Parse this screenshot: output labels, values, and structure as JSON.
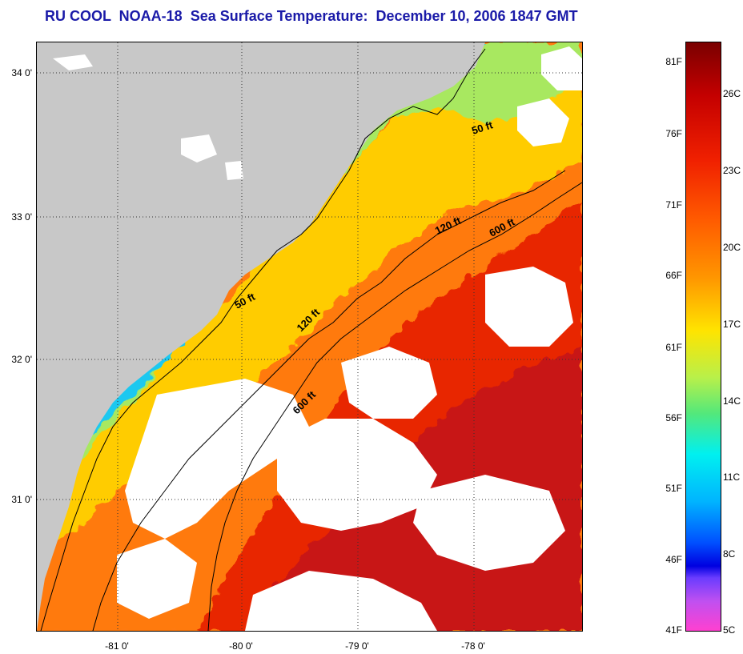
{
  "title": "RU COOL  NOAA-18  Sea Surface Temperature:  December 10, 2006 1847 GMT",
  "map": {
    "lat_labels": [
      "34 0'",
      "33 0'",
      "32 0'",
      "31 0'"
    ],
    "lon_labels": [
      "-81 0'",
      "-80 0'",
      "-79 0'",
      "-78 0'"
    ],
    "contour_labels": [
      "50 ft",
      "120 ft",
      "600 ft",
      "50 ft",
      "120 ft",
      "600 ft"
    ],
    "colors": {
      "land": "#c8c8c8",
      "cloud": "#ffffff",
      "near_shore": "#1ec8f0",
      "shelf": "#a8e860",
      "mid_shelf": "#ffcc00",
      "outer_shelf": "#ff7a10",
      "gulf_stream": "#e82800",
      "gulf_core": "#c81414"
    }
  },
  "colorbar": {
    "fahrenheit": [
      "81F",
      "76F",
      "71F",
      "66F",
      "61F",
      "56F",
      "51F",
      "46F",
      "41F"
    ],
    "celsius": [
      "26C",
      "23C",
      "20C",
      "17C",
      "14C",
      "11C",
      "8C",
      "5C"
    ]
  }
}
